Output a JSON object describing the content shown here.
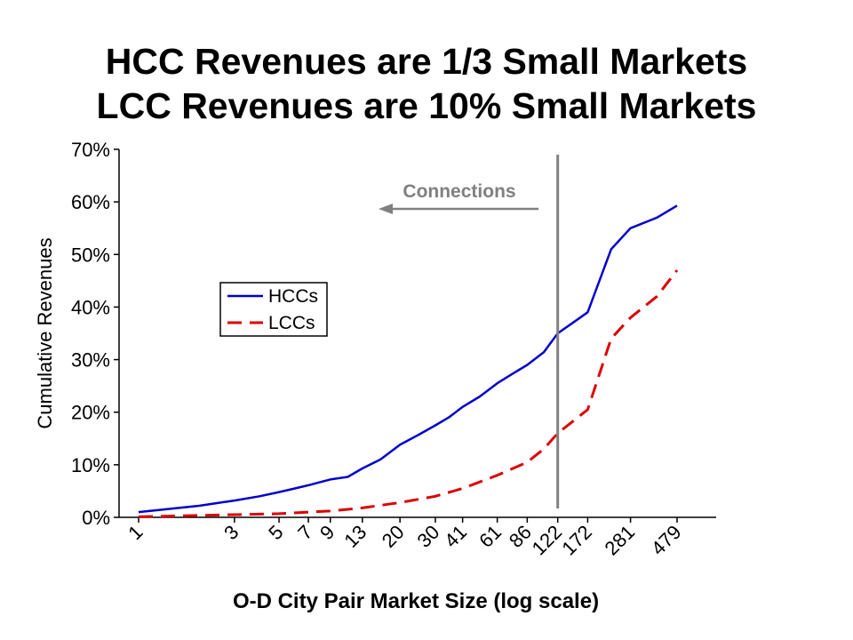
{
  "chart_data": {
    "type": "line",
    "title_lines": [
      "HCC Revenues are 1/3 Small Markets",
      "LCC Revenues are 10% Small Markets"
    ],
    "xlabel": "O-D City Pair Market Size (log scale)",
    "ylabel": "Cumulative Revenues",
    "x_scale": "log",
    "x_tick_labels": [
      "1",
      "3",
      "5",
      "7",
      "9",
      "13",
      "20",
      "30",
      "41",
      "61",
      "86",
      "122",
      "172",
      "281",
      "479"
    ],
    "ylim": [
      0,
      0.7
    ],
    "y_ticks": [
      0,
      0.1,
      0.2,
      0.3,
      0.4,
      0.5,
      0.6,
      0.7
    ],
    "y_tick_labels": [
      "0%",
      "10%",
      "20%",
      "30%",
      "40%",
      "50%",
      "60%",
      "70%"
    ],
    "grid": false,
    "legend": {
      "position": "center-left",
      "boxed": true
    },
    "series": [
      {
        "name": "HCCs",
        "color": "#0000cc",
        "dash": "solid",
        "x": [
          1,
          2,
          3,
          4,
          5,
          6,
          7,
          8,
          9,
          11,
          13,
          16,
          20,
          25,
          30,
          35,
          41,
          50,
          61,
          72,
          86,
          104,
          122,
          145,
          172,
          225,
          281,
          380,
          479
        ],
        "y": [
          0.01,
          0.022,
          0.032,
          0.04,
          0.048,
          0.055,
          0.061,
          0.067,
          0.072,
          0.077,
          0.093,
          0.11,
          0.138,
          0.158,
          0.175,
          0.19,
          0.21,
          0.23,
          0.255,
          0.272,
          0.29,
          0.314,
          0.35,
          0.37,
          0.39,
          0.51,
          0.55,
          0.57,
          0.593
        ]
      },
      {
        "name": "LCCs",
        "color": "#dd0000",
        "dash": "dashed",
        "x": [
          1,
          3,
          5,
          7,
          9,
          13,
          20,
          30,
          41,
          61,
          86,
          104,
          122,
          172,
          225,
          281,
          380,
          479
        ],
        "y": [
          0.001,
          0.005,
          0.007,
          0.01,
          0.012,
          0.018,
          0.028,
          0.04,
          0.055,
          0.08,
          0.105,
          0.13,
          0.16,
          0.205,
          0.34,
          0.38,
          0.42,
          0.47
        ]
      }
    ],
    "annotations": [
      {
        "type": "vertical_line",
        "x": 122,
        "color": "#808080"
      },
      {
        "type": "arrow",
        "direction": "left",
        "text": "Connections",
        "color": "#808080"
      }
    ]
  }
}
